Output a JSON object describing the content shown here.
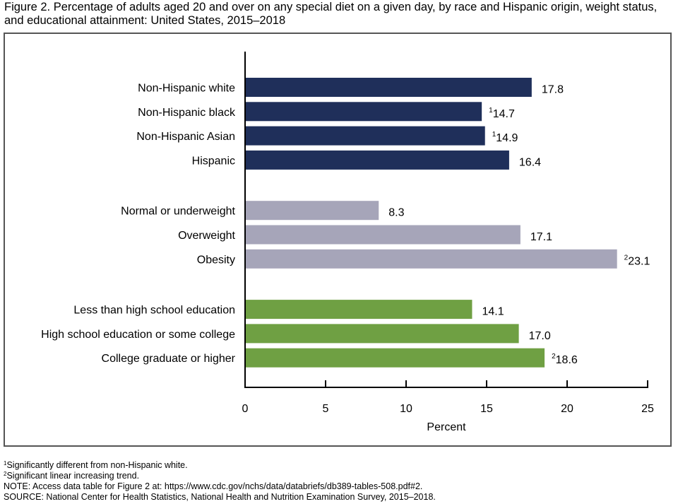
{
  "title": "Figure 2. Percentage of adults aged 20 and over on any special diet on a given day, by race and Hispanic origin, weight status, and educational attainment: United States, 2015–2018",
  "chart_data": {
    "type": "bar",
    "orientation": "horizontal",
    "title": "Figure 2. Percentage of adults aged 20 and over on any special diet on a given day, by race and Hispanic origin, weight status, and educational attainment: United States, 2015–2018",
    "xlabel": "Percent",
    "ylabel": "",
    "xlim": [
      0,
      25
    ],
    "xticks": [
      0,
      5,
      10,
      15,
      20,
      25
    ],
    "grid": false,
    "groups": [
      {
        "name": "Race and Hispanic origin",
        "color": "#1f2f5a",
        "categories": [
          "Non-Hispanic white",
          "Non-Hispanic black",
          "Non-Hispanic Asian",
          "Hispanic"
        ],
        "values": [
          17.8,
          14.7,
          14.9,
          16.4
        ],
        "footnote_marks": [
          "",
          "1",
          "1",
          ""
        ]
      },
      {
        "name": "Weight status",
        "color": "#a6a5b9",
        "categories": [
          "Normal or underweight",
          "Overweight",
          "Obesity"
        ],
        "values": [
          8.3,
          17.1,
          23.1
        ],
        "footnote_marks": [
          "",
          "",
          "2"
        ]
      },
      {
        "name": "Educational attainment",
        "color": "#6fa043",
        "categories": [
          "Less than high school education",
          "High school education or some college",
          "College graduate or higher"
        ],
        "values": [
          14.1,
          17.0,
          18.6
        ],
        "footnote_marks": [
          "",
          "",
          "2"
        ]
      }
    ]
  },
  "footnotes": [
    {
      "mark": "1",
      "text": "Significantly different from non-Hispanic white."
    },
    {
      "mark": "2",
      "text": "Significant linear increasing trend."
    },
    {
      "mark": "",
      "text": "NOTE: Access data table for Figure 2 at: https://www.cdc.gov/nchs/data/databriefs/db389-tables-508.pdf#2."
    },
    {
      "mark": "",
      "text": "SOURCE: National Center for Health Statistics, National Health and Nutrition Examination Survey, 2015–2018."
    }
  ]
}
